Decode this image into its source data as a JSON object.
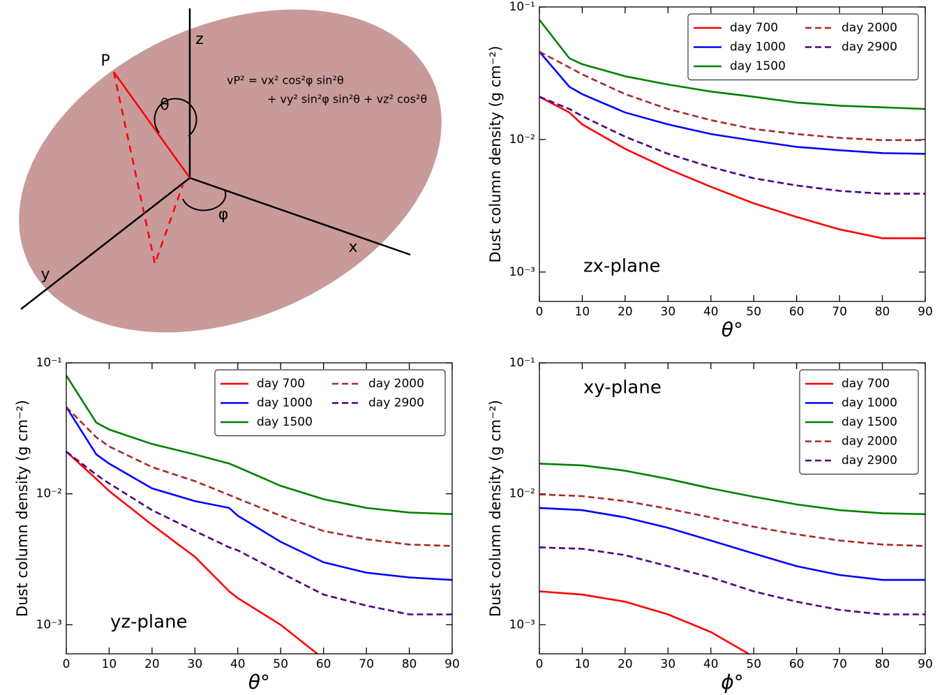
{
  "diagram": {
    "labels": {
      "z": "z",
      "x": "x",
      "y": "y",
      "p": "P",
      "theta": "θ",
      "phi": "φ"
    },
    "formula": [
      "vP² = vx² cos²φ sin²θ",
      "+ vy² sin²φ sin²θ + vz² cos²θ"
    ]
  },
  "chart_data": [
    {
      "type": "line",
      "annotation": "zx-plane",
      "xlabel": "θ°",
      "ylabel": "Dust column density (g cm⁻²)",
      "log_y": true,
      "legend": "upper right",
      "legend_columns": 2,
      "xlim": [
        0,
        90
      ],
      "xticks": [
        0,
        10,
        20,
        30,
        40,
        50,
        60,
        70,
        80,
        90
      ],
      "ylim": [
        0.1,
        0.0006
      ],
      "yticks": [
        {
          "value": 0.1,
          "label": "10⁻¹"
        },
        {
          "value": 0.01,
          "label": "10⁻²"
        },
        {
          "value": 0.001,
          "label": "10⁻³"
        }
      ],
      "x": [
        0,
        7,
        10,
        20,
        30,
        40,
        50,
        60,
        70,
        80,
        90
      ],
      "series": [
        {
          "name": "day 700",
          "color": "#ff0000",
          "linestyle": "solid",
          "values": [
            0.021,
            0.016,
            0.013,
            0.0085,
            0.006,
            0.0044,
            0.0033,
            0.0026,
            0.0021,
            0.0018,
            0.0018
          ]
        },
        {
          "name": "day 1000",
          "color": "#0000ff",
          "linestyle": "solid",
          "values": [
            0.046,
            0.025,
            0.022,
            0.016,
            0.013,
            0.011,
            0.0098,
            0.0088,
            0.0083,
            0.0079,
            0.0078
          ]
        },
        {
          "name": "day 1500",
          "color": "#008000",
          "linestyle": "solid",
          "values": [
            0.08,
            0.041,
            0.037,
            0.03,
            0.026,
            0.023,
            0.021,
            0.019,
            0.018,
            0.0175,
            0.017
          ]
        },
        {
          "name": "day 2000",
          "color": "#a52a2a",
          "linestyle": "dashed",
          "values": [
            0.046,
            0.035,
            0.031,
            0.022,
            0.017,
            0.014,
            0.012,
            0.011,
            0.0103,
            0.0099,
            0.0099
          ]
        },
        {
          "name": "day 2900",
          "color": "#4b0082",
          "linestyle": "dashed",
          "values": [
            0.021,
            0.017,
            0.015,
            0.0105,
            0.0078,
            0.0062,
            0.0051,
            0.0045,
            0.0041,
            0.0039,
            0.0039
          ]
        }
      ]
    },
    {
      "type": "line",
      "annotation": "yz-plane",
      "xlabel": "θ°",
      "ylabel": "Dust column density (g cm⁻²)",
      "log_y": true,
      "legend": "upper right",
      "legend_columns": 2,
      "xlim": [
        0,
        90
      ],
      "xticks": [
        0,
        10,
        20,
        30,
        40,
        50,
        60,
        70,
        80,
        90
      ],
      "ylim": [
        0.1,
        0.0006
      ],
      "yticks": [
        {
          "value": 0.1,
          "label": "10⁻¹"
        },
        {
          "value": 0.01,
          "label": "10⁻²"
        },
        {
          "value": 0.001,
          "label": "10⁻³"
        }
      ],
      "x": [
        0,
        7,
        10,
        20,
        30,
        38,
        40,
        50,
        60,
        70,
        80,
        90
      ],
      "series": [
        {
          "name": "day 700",
          "color": "#ff0000",
          "linestyle": "solid",
          "values": [
            0.021,
            0.013,
            0.0105,
            0.0058,
            0.0033,
            0.0018,
            0.0016,
            0.001,
            0.00055,
            null,
            null,
            null
          ]
        },
        {
          "name": "day 1000",
          "color": "#0000ff",
          "linestyle": "solid",
          "values": [
            0.046,
            0.02,
            0.017,
            0.011,
            0.0088,
            0.0078,
            0.0068,
            0.0043,
            0.003,
            0.0025,
            0.0023,
            0.0022
          ]
        },
        {
          "name": "day 1500",
          "color": "#008000",
          "linestyle": "solid",
          "values": [
            0.08,
            0.035,
            0.031,
            0.024,
            0.02,
            0.017,
            0.016,
            0.0115,
            0.0091,
            0.0078,
            0.0072,
            0.007
          ]
        },
        {
          "name": "day 2000",
          "color": "#a52a2a",
          "linestyle": "dashed",
          "values": [
            0.046,
            0.027,
            0.023,
            0.016,
            0.0125,
            0.0098,
            0.0092,
            0.0068,
            0.0052,
            0.0045,
            0.0041,
            0.004
          ]
        },
        {
          "name": "day 2900",
          "color": "#4b0082",
          "linestyle": "dashed",
          "values": [
            0.021,
            0.014,
            0.012,
            0.0075,
            0.0052,
            0.0039,
            0.0037,
            0.0025,
            0.0017,
            0.0014,
            0.0012,
            0.0012
          ]
        }
      ]
    },
    {
      "type": "line",
      "annotation": "xy-plane",
      "xlabel": "ϕ°",
      "ylabel": "Dust column density (g cm⁻²)",
      "log_y": true,
      "legend": "upper right",
      "legend_columns": 1,
      "xlim": [
        0,
        90
      ],
      "xticks": [
        0,
        10,
        20,
        30,
        40,
        50,
        60,
        70,
        80,
        90
      ],
      "ylim": [
        0.1,
        0.0006
      ],
      "yticks": [
        {
          "value": 0.1,
          "label": "10⁻¹"
        },
        {
          "value": 0.01,
          "label": "10⁻²"
        },
        {
          "value": 0.001,
          "label": "10⁻³"
        }
      ],
      "x": [
        0,
        10,
        20,
        30,
        40,
        50,
        60,
        70,
        80,
        90
      ],
      "series": [
        {
          "name": "day 700",
          "color": "#ff0000",
          "linestyle": "solid",
          "values": [
            0.0018,
            0.0017,
            0.0015,
            0.0012,
            0.00088,
            0.00057,
            null,
            null,
            null,
            null
          ]
        },
        {
          "name": "day 1000",
          "color": "#0000ff",
          "linestyle": "solid",
          "values": [
            0.0078,
            0.0075,
            0.0066,
            0.0055,
            0.0044,
            0.0035,
            0.0028,
            0.0024,
            0.0022,
            0.0022
          ]
        },
        {
          "name": "day 1500",
          "color": "#008000",
          "linestyle": "solid",
          "values": [
            0.017,
            0.0165,
            0.015,
            0.013,
            0.011,
            0.0095,
            0.0083,
            0.0075,
            0.0071,
            0.007
          ]
        },
        {
          "name": "day 2000",
          "color": "#a52a2a",
          "linestyle": "dashed",
          "values": [
            0.0099,
            0.0096,
            0.0088,
            0.0077,
            0.0066,
            0.0056,
            0.0049,
            0.0044,
            0.0041,
            0.004
          ]
        },
        {
          "name": "day 2900",
          "color": "#4b0082",
          "linestyle": "dashed",
          "values": [
            0.0039,
            0.0038,
            0.0034,
            0.0028,
            0.0023,
            0.0018,
            0.0015,
            0.0013,
            0.0012,
            0.0012
          ]
        }
      ]
    }
  ]
}
